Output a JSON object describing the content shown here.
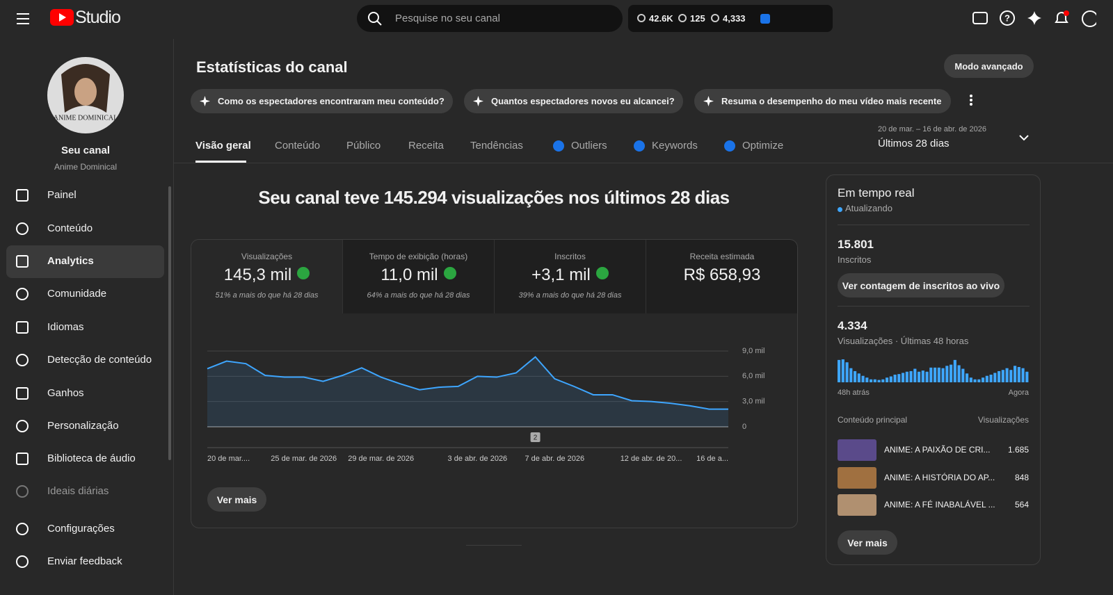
{
  "header": {
    "logo": "Studio",
    "search_placeholder": "Pesquise no seu canal",
    "stats": [
      "42.6K",
      "125",
      "4,333"
    ]
  },
  "sidebar": {
    "avatar_text": "ANIME DOMINICAL",
    "channel_title": "Seu canal",
    "channel_name": "Anime Dominical",
    "active": 2,
    "items": [
      "Painel",
      "Conteúdo",
      "Analytics",
      "Comunidade",
      "Idiomas",
      "Detecção de conteúdo",
      "Ganhos",
      "Personalização",
      "Biblioteca de áudio",
      "Ideais diárias"
    ],
    "bottom_items": [
      "Configurações",
      "Enviar feedback"
    ]
  },
  "page": {
    "title": "Estatísticas do canal",
    "advanced_button": "Modo avançado",
    "suggestions": [
      "Como os espectadores encontraram meu conteúdo?",
      "Quantos espectadores novos eu alcancei?",
      "Resuma o desempenho do meu vídeo mais recente"
    ],
    "tabs": [
      "Visão geral",
      "Conteúdo",
      "Público",
      "Receita",
      "Tendências",
      "Outliers",
      "Keywords",
      "Optimize"
    ],
    "date_range": "20 de mar. – 16 de abr. de 2026",
    "period": "Últimos 28 dias"
  },
  "overview": {
    "headline": "Seu canal teve 145.294 visualizações nos últimos 28 dias",
    "metrics": [
      {
        "label": "Visualizações",
        "value": "145,3 mil",
        "change": "51% a mais do que há 28 dias"
      },
      {
        "label": "Tempo de exibição (horas)",
        "value": "11,0 mil",
        "change": "64% a mais do que há 28 dias"
      },
      {
        "label": "Inscritos",
        "value": "+3,1 mil",
        "change": "39% a mais do que há 28 dias"
      },
      {
        "label": "Receita estimada",
        "value": "R$ 658,93"
      }
    ],
    "see_more": "Ver mais"
  },
  "chart_data": [
    {
      "type": "line",
      "color": "#3ea6ff",
      "grid": true,
      "categories": [
        "20 de mar....",
        null,
        null,
        null,
        null,
        "25 de mar. de 2026",
        null,
        null,
        null,
        "29 de mar. de 2026",
        null,
        null,
        null,
        null,
        "3 de abr. de 2026",
        null,
        null,
        null,
        "7 de abr. de 2026",
        null,
        null,
        null,
        null,
        "12 de abr. de 20...",
        null,
        null,
        null,
        "16 de a..."
      ],
      "values": [
        6900,
        7800,
        7500,
        6100,
        5900,
        5900,
        5400,
        6100,
        7000,
        5900,
        5100,
        4400,
        4700,
        4800,
        6000,
        5900,
        6400,
        8300,
        5700,
        4800,
        3800,
        3800,
        3100,
        3000,
        2800,
        2500,
        2100,
        2100
      ],
      "ylim": [
        0,
        9000
      ],
      "yticks": [
        0,
        {
          "value": 3000,
          "label": "3,0 mil"
        },
        {
          "value": 6000,
          "label": "6,0 mil"
        },
        {
          "value": 9000,
          "label": "9,0 mil"
        }
      ],
      "annotations": [
        {
          "index": 17,
          "label": "2"
        }
      ]
    },
    {
      "type": "bar",
      "color": "#3ea6ff",
      "values": [
        190,
        195,
        170,
        120,
        95,
        75,
        55,
        40,
        25,
        25,
        20,
        25,
        40,
        50,
        65,
        70,
        80,
        90,
        95,
        115,
        90,
        100,
        90,
        125,
        125,
        125,
        120,
        140,
        150,
        190,
        145,
        115,
        75,
        40,
        25,
        25,
        40,
        55,
        65,
        80,
        95,
        105,
        120,
        105,
        140,
        130,
        120,
        90
      ]
    }
  ],
  "realtime": {
    "title": "Em tempo real",
    "status": "Atualizando",
    "subscribers": "15.801",
    "subscribers_label": "Inscritos",
    "live_button": "Ver contagem de inscritos ao vivo",
    "views": "4.334",
    "views_label": "Visualizações · Últimas 48 horas",
    "start_label": "48h atrás",
    "end_label": "Agora",
    "top_header": "Conteúdo principal",
    "top_metric": "Visualizações",
    "top_content": [
      {
        "title": "ANIME: A PAIXÃO DE CRI...",
        "views": "1.685"
      },
      {
        "title": "ANIME: A HISTÓRIA DO AP...",
        "views": "848"
      },
      {
        "title": "ANIME: A FÉ INABALÁVEL ...",
        "views": "564"
      }
    ],
    "see_more": "Ver mais"
  }
}
